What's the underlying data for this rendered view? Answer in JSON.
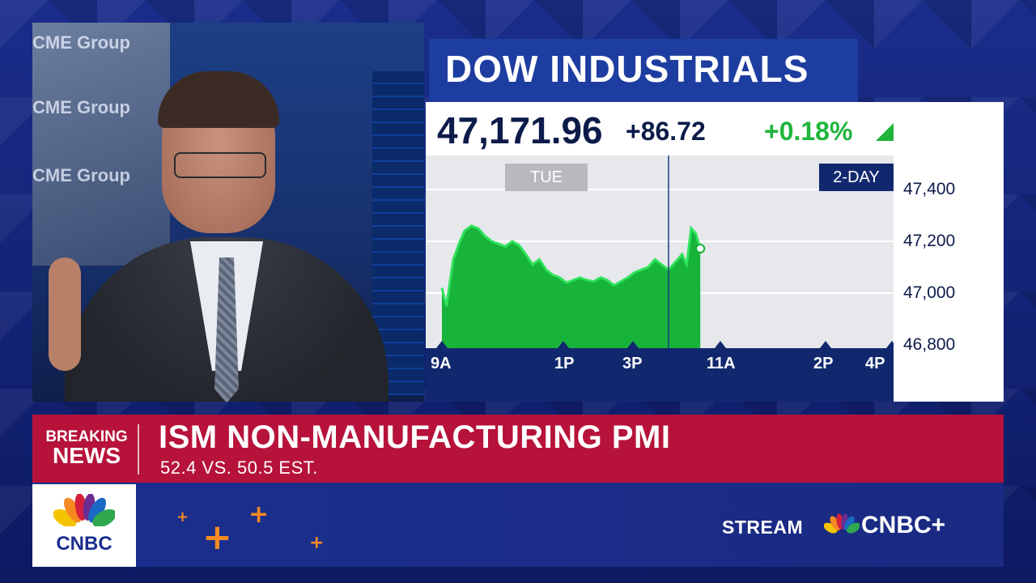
{
  "background": {
    "wall_text": [
      "CME Group",
      "CME Group",
      "CME Group"
    ]
  },
  "chart_card": {
    "title": "DOW INDUSTRIALS",
    "price": "47,171.96",
    "change": "+86.72",
    "percent_change": "+0.18%",
    "day_label": "TUE",
    "range_label": "2-DAY"
  },
  "chart_data": {
    "type": "area",
    "title": "DOW INDUSTRIALS",
    "x_tick_labels": [
      "9A",
      "1P",
      "3P",
      "11A",
      "2P",
      "4P"
    ],
    "y_tick_labels": [
      "47,400",
      "47,200",
      "47,000",
      "46,800"
    ],
    "ylim": [
      46800,
      47400
    ],
    "grid": true,
    "series": [
      {
        "x": [
          0,
          0.02,
          0.05,
          0.08,
          0.1,
          0.13,
          0.16,
          0.19,
          0.22,
          0.25,
          0.28,
          0.31,
          0.34,
          0.37,
          0.4,
          0.43,
          0.46,
          0.49,
          0.52,
          0.55,
          0.58,
          0.61,
          0.64,
          0.67,
          0.7,
          0.73,
          0.76,
          0.79,
          0.82,
          0.85,
          0.88,
          0.91,
          0.94,
          0.97,
          1.0,
          1.03,
          1.06,
          1.08,
          1.1,
          1.12,
          1.14
        ],
        "values": [
          47020,
          46950,
          47130,
          47200,
          47240,
          47260,
          47250,
          47220,
          47200,
          47190,
          47180,
          47200,
          47185,
          47150,
          47110,
          47130,
          47090,
          47070,
          47060,
          47040,
          47050,
          47060,
          47050,
          47045,
          47060,
          47050,
          47030,
          47045,
          47060,
          47080,
          47090,
          47100,
          47130,
          47110,
          47090,
          47120,
          47150,
          47110,
          47250,
          47230,
          47172
        ]
      }
    ]
  },
  "breaking_news": {
    "label_line1": "BREAKING",
    "label_line2": "NEWS",
    "headline": "ISM NON-MANUFACTURING PMI",
    "subline": "52.4 VS. 50.5 EST."
  },
  "branding": {
    "logo_text": "CNBC",
    "stream_label": "STREAM",
    "stream_brand": "CNBC+",
    "accent_orange": "#f58a23",
    "brand_blue": "#1b2f8e",
    "news_red": "#b6123a",
    "up_green": "#1fb53c"
  }
}
